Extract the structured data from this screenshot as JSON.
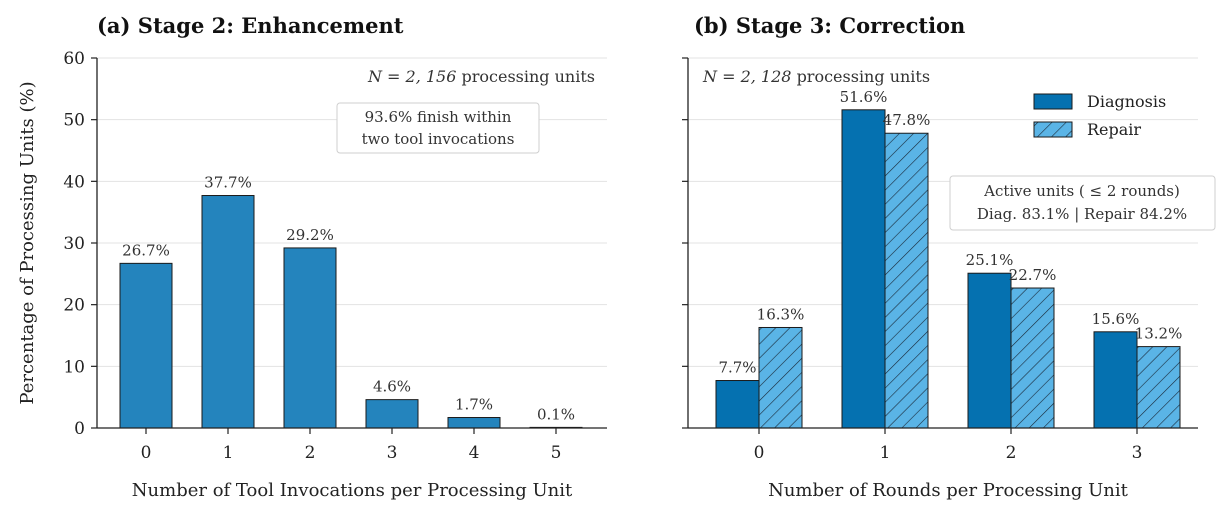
{
  "chart_data": [
    {
      "type": "bar",
      "title": "(a) Stage 2: Enhancement",
      "xlabel": "Number of Tool Invocations per Processing Unit",
      "ylabel": "Percentage of Processing Units (%)",
      "categories": [
        "0",
        "1",
        "2",
        "3",
        "4",
        "5"
      ],
      "values": [
        26.7,
        37.7,
        29.2,
        4.6,
        1.7,
        0.1
      ],
      "value_labels": [
        "26.7%",
        "37.7%",
        "29.2%",
        "4.6%",
        "1.7%",
        "0.1%"
      ],
      "ylim": [
        0,
        60
      ],
      "yticks": [
        "0",
        "10",
        "20",
        "30",
        "40",
        "50",
        "60"
      ],
      "n_prefix": "N = 2, 156",
      "n_suffix": "processing units",
      "box_lines": [
        "93.6% finish within",
        "two tool invocations"
      ],
      "bar_color": "#2484bd",
      "grid": "horizontal"
    },
    {
      "type": "bar",
      "title": "(b) Stage 3: Correction",
      "xlabel": "Number of Rounds per Processing Unit",
      "categories": [
        "0",
        "1",
        "2",
        "3"
      ],
      "series": [
        {
          "name": "Diagnosis",
          "values": [
            7.7,
            51.6,
            25.1,
            15.6
          ],
          "value_labels": [
            "7.7%",
            "51.6%",
            "25.1%",
            "15.6%"
          ],
          "color": "#0571b0",
          "pattern": "solid"
        },
        {
          "name": "Repair",
          "values": [
            16.3,
            47.8,
            22.7,
            13.2
          ],
          "value_labels": [
            "16.3%",
            "47.8%",
            "22.7%",
            "13.2%"
          ],
          "color": "#5ab4e6",
          "pattern": "hatch"
        }
      ],
      "ylim": [
        0,
        60
      ],
      "n_prefix": "N = 2, 128",
      "n_suffix": "processing units",
      "box_lines": [
        "Active units ( ≤ 2 rounds)",
        "Diag. 83.1%  |  Repair 84.2%"
      ],
      "legend_position": "top-right",
      "grid": "horizontal"
    }
  ]
}
